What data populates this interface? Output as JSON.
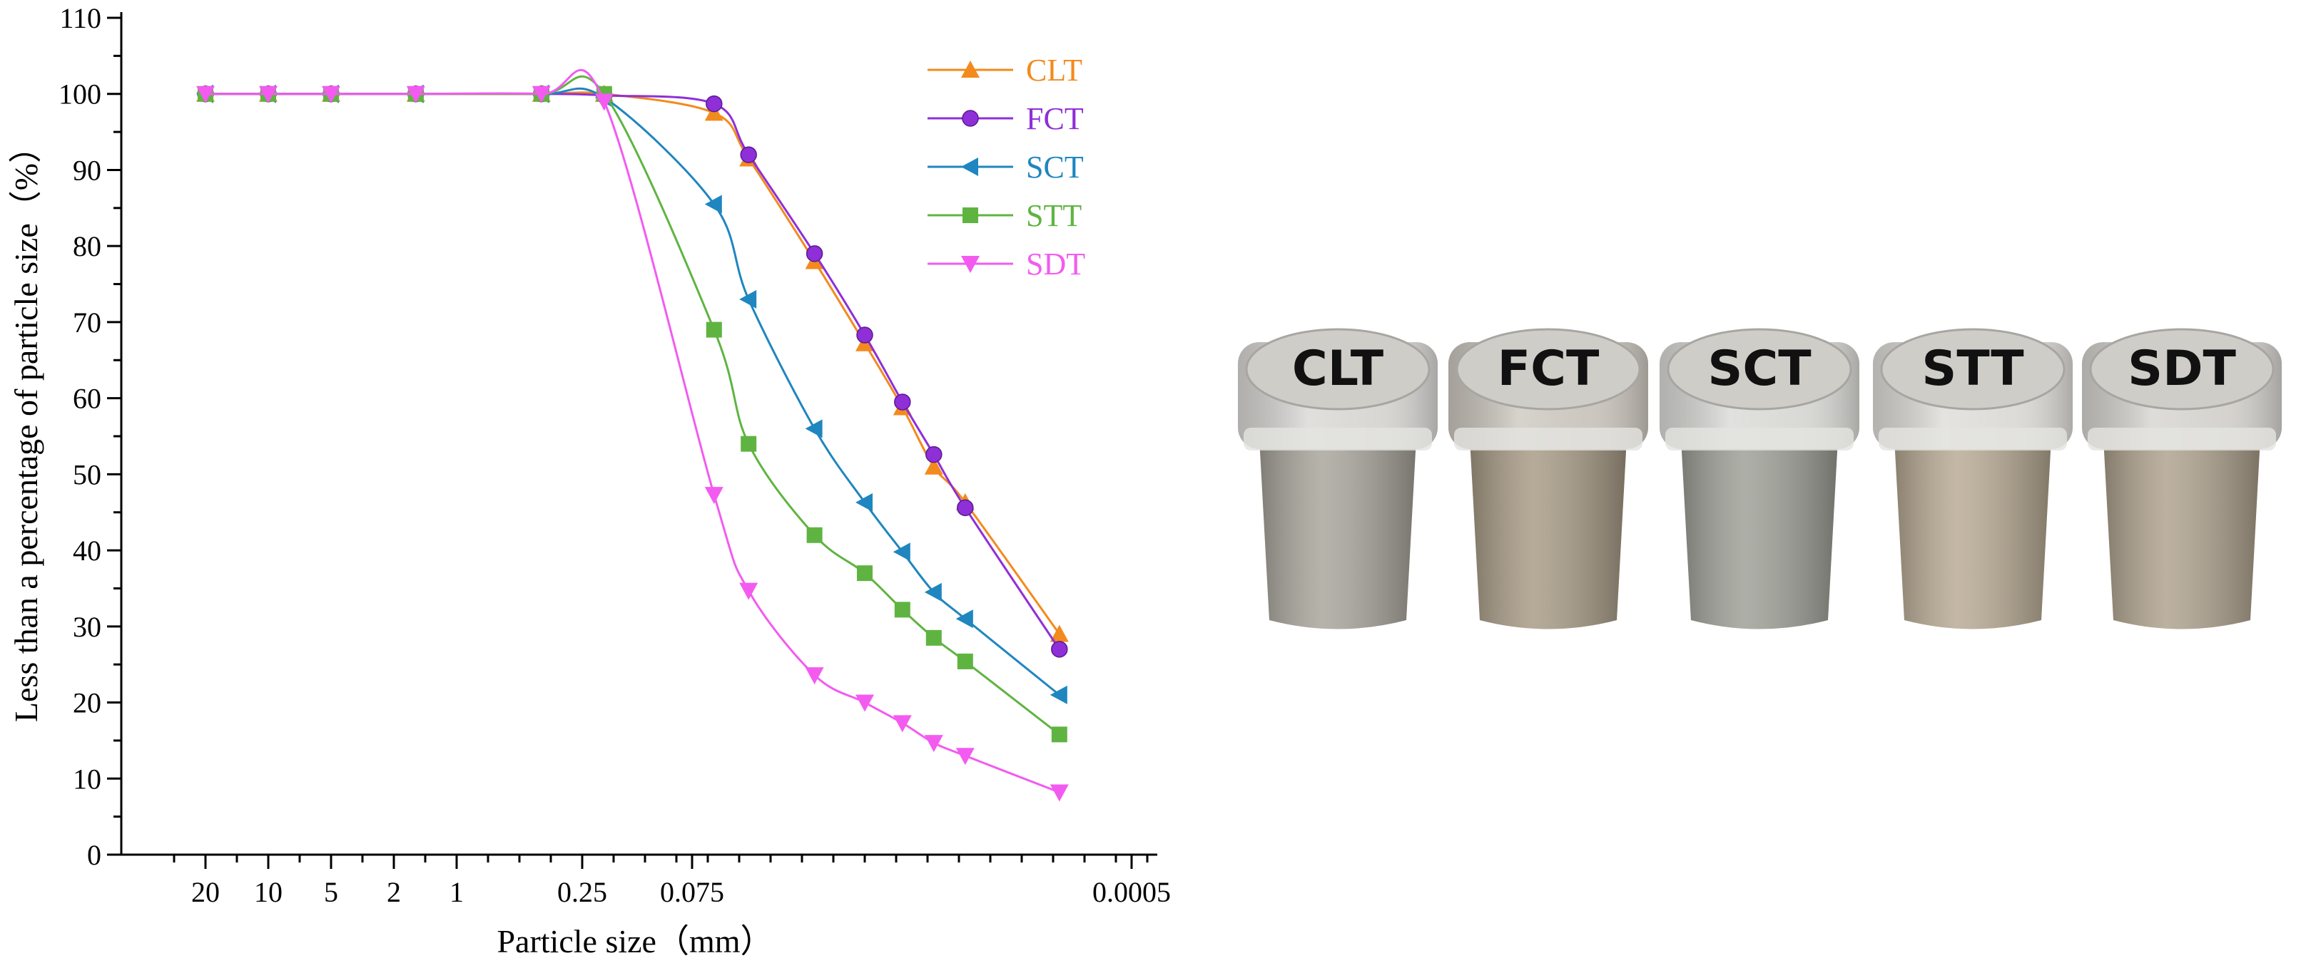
{
  "chart_data": {
    "type": "line",
    "xlabel": "Particle size（mm）",
    "ylabel": "Less than a percentage of particle size（%）",
    "ylim": [
      0,
      110
    ],
    "yticks": [
      0,
      10,
      20,
      30,
      40,
      50,
      60,
      70,
      80,
      90,
      100,
      110
    ],
    "x_tick_labels": [
      "20",
      "10",
      "5",
      "2",
      "1",
      "0.25",
      "0.075",
      "0.0005"
    ],
    "x_tick_pos": [
      0,
      1,
      2,
      3,
      4,
      6,
      7.75,
      14.75
    ],
    "x_sample_pos": [
      0,
      1,
      2,
      3.35,
      5.35,
      6.35,
      8.1,
      8.65,
      9.7,
      10.5,
      11.1,
      11.6,
      12.1,
      13.6
    ],
    "legend_position": "top-right",
    "grid": false,
    "series": [
      {
        "name": "CLT",
        "color": "#F38A1D",
        "marker": "triangle-up",
        "values": [
          100,
          100,
          100,
          100,
          100,
          100,
          97.5,
          91.5,
          78,
          67.2,
          58.8,
          51,
          46.3,
          29
        ]
      },
      {
        "name": "FCT",
        "color": "#8F2FD8",
        "marker": "circle",
        "values": [
          100,
          100,
          100,
          100,
          100,
          99.8,
          98.7,
          92,
          79,
          68.3,
          59.5,
          52.6,
          45.6,
          27
        ]
      },
      {
        "name": "SCT",
        "color": "#1F86BF",
        "marker": "triangle-left",
        "values": [
          100,
          100,
          100,
          100,
          100,
          99.5,
          85.5,
          73,
          56,
          46.3,
          39.8,
          34.5,
          31,
          21
        ]
      },
      {
        "name": "STT",
        "color": "#5FB441",
        "marker": "square",
        "values": [
          100,
          100,
          100,
          100,
          100,
          100,
          69,
          54,
          42,
          37,
          32.2,
          28.5,
          25.4,
          15.8
        ]
      },
      {
        "name": "SDT",
        "color": "#F35BF0",
        "marker": "triangle-down",
        "values": [
          100,
          100,
          100,
          100,
          100,
          99,
          47.3,
          34.7,
          23.6,
          20,
          17.3,
          14.7,
          13,
          8.2
        ]
      }
    ]
  },
  "photo": {
    "samples": [
      {
        "label": "CLT",
        "sand": "#a9a69c",
        "lid": "#d6d5d2"
      },
      {
        "label": "FCT",
        "sand": "#a99c87",
        "lid": "#c9c4bc"
      },
      {
        "label": "SCT",
        "sand": "#9fa198",
        "lid": "#d7d7d4"
      },
      {
        "label": "STT",
        "sand": "#b9ab95",
        "lid": "#dcdad5"
      },
      {
        "label": "SDT",
        "sand": "#b0a38f",
        "lid": "#d4d1cc"
      }
    ]
  }
}
